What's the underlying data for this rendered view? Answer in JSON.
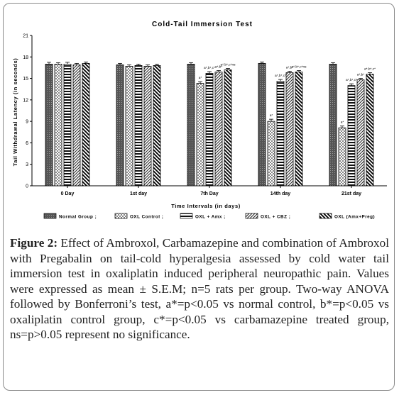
{
  "chart_data": {
    "type": "bar",
    "title": "Cold-Tail Immersion Test",
    "xlabel": "Time Intervals (in days)",
    "ylabel": "Tail Withdrawal Latency (in seconds)",
    "ylim": [
      0,
      21
    ],
    "yticks": [
      0,
      3,
      6,
      9,
      12,
      15,
      18,
      21
    ],
    "grid": false,
    "legend_position": "bottom",
    "categories": [
      "0 Day",
      "1st day",
      "7th Day",
      "14th day",
      "21st day"
    ],
    "series": [
      {
        "name": "Normal Group ;",
        "pattern": "solid-dark",
        "values": [
          17.0,
          16.9,
          17.0,
          17.1,
          17.0
        ],
        "errors": [
          0.25,
          0.2,
          0.2,
          0.2,
          0.2
        ]
      },
      {
        "name": "OXL Control ;",
        "pattern": "dots",
        "values": [
          17.0,
          16.7,
          14.3,
          9.0,
          8.1
        ],
        "errors": [
          0.2,
          0.2,
          0.25,
          0.3,
          0.25
        ]
      },
      {
        "name": "OXL + Amx ;",
        "pattern": "hstripes",
        "values": [
          17.0,
          16.8,
          15.7,
          14.6,
          14.0
        ],
        "errors": [
          0.25,
          0.2,
          0.25,
          0.25,
          0.25
        ]
      },
      {
        "name": "OXL + CBZ ;",
        "pattern": "diag-light",
        "values": [
          16.9,
          16.7,
          15.9,
          15.8,
          14.8
        ],
        "errors": [
          0.2,
          0.2,
          0.2,
          0.2,
          0.2
        ]
      },
      {
        "name": "OXL (Amx+Preg)",
        "pattern": "diag-bold",
        "values": [
          17.1,
          16.8,
          16.2,
          15.9,
          15.6
        ],
        "errors": [
          0.2,
          0.2,
          0.2,
          0.2,
          0.2
        ]
      }
    ],
    "annotations": [
      {
        "category": "7th Day",
        "series": 1,
        "text": "a*"
      },
      {
        "category": "7th Day",
        "series": 2,
        "text": "a*,b*,c*"
      },
      {
        "category": "7th Day",
        "series": 3,
        "text": "a*,b*"
      },
      {
        "category": "7th Day",
        "series": 4,
        "text": "a*,b*,c*ns"
      },
      {
        "category": "14th day",
        "series": 1,
        "text": "a*"
      },
      {
        "category": "14th day",
        "series": 2,
        "text": "a*,b*,c*"
      },
      {
        "category": "14th day",
        "series": 3,
        "text": "a*,b*"
      },
      {
        "category": "14th day",
        "series": 4,
        "text": "a*,b*,c*ns"
      },
      {
        "category": "21st day",
        "series": 1,
        "text": "a*"
      },
      {
        "category": "21st day",
        "series": 2,
        "text": "a*,b*,c*"
      },
      {
        "category": "21st day",
        "series": 3,
        "text": "a*,b*"
      },
      {
        "category": "21st day",
        "series": 4,
        "text": "a*,b*,c*"
      }
    ]
  },
  "caption": {
    "label": "Figure 2:",
    "text": "Effect of Ambroxol, Carbamazepine and combination of Ambroxol with Pregabalin on tail-cold hyperalgesia assessed by cold water tail immersion test in oxaliplatin induced peripheral neuropathic pain. Values were expressed as mean ± S.E.M; n=5 rats per group. Two-way ANOVA followed by Bonferroni’s test, a*=p<0.05 vs normal control, b*=p<0.05 vs oxaliplatin control group, c*=p<0.05 vs carbamazepine treated group, ns=p>0.05 represent no significance."
  }
}
